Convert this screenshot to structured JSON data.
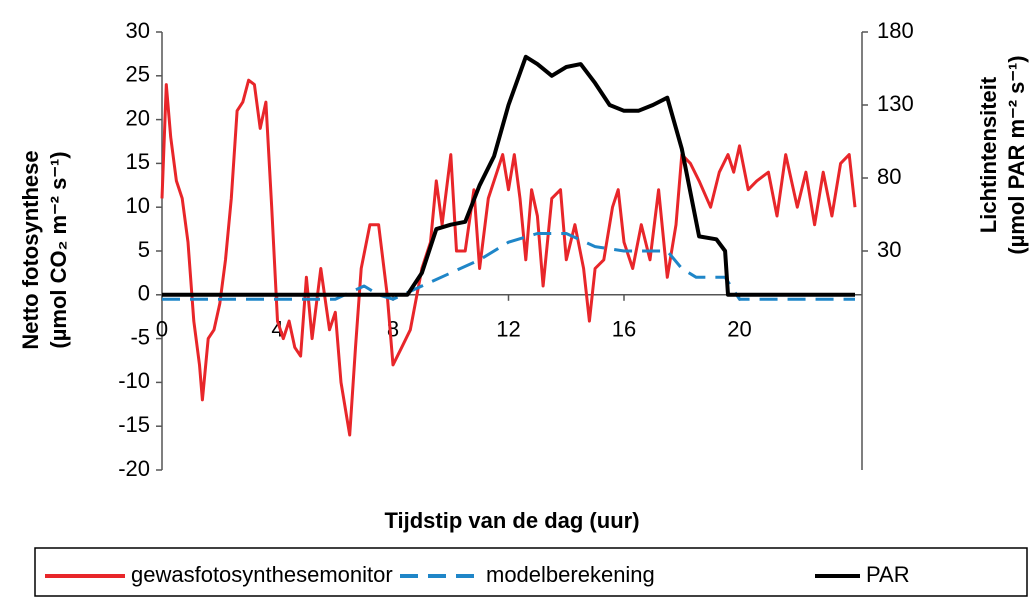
{
  "chart_data": {
    "type": "line",
    "x_label": "Tijdstip van de dag (uur)",
    "y_label": [
      "Netto fotosynthese",
      "(µmol CO₂ m⁻² s⁻¹)"
    ],
    "y2_label": [
      "Lichtintensiteit",
      "(µmol PAR m⁻² s⁻¹)"
    ],
    "xlim": [
      0,
      24
    ],
    "xticks": [
      0,
      4,
      8,
      12,
      16,
      20
    ],
    "ylim": [
      -20,
      30
    ],
    "yticks": [
      -20,
      -15,
      -10,
      -5,
      0,
      5,
      10,
      15,
      20,
      25,
      30
    ],
    "y2lim": [
      -120,
      180
    ],
    "y2ticks": [
      30,
      80,
      130,
      180
    ],
    "legend": "bottom",
    "series": [
      {
        "name": "gewasfotosynthesemonitor",
        "color": "#e8262a",
        "dash": "solid",
        "axis": "y",
        "x": [
          0,
          0.15,
          0.3,
          0.5,
          0.7,
          0.9,
          1.1,
          1.3,
          1.4,
          1.6,
          1.8,
          2,
          2.2,
          2.4,
          2.6,
          2.8,
          3,
          3.2,
          3.4,
          3.6,
          3.8,
          4,
          4.2,
          4.4,
          4.6,
          4.8,
          5,
          5.2,
          5.5,
          5.8,
          6,
          6.2,
          6.5,
          6.7,
          6.9,
          7.2,
          7.5,
          7.8,
          8,
          8.3,
          8.6,
          9,
          9.3,
          9.5,
          9.7,
          10,
          10.2,
          10.5,
          10.8,
          11,
          11.3,
          11.6,
          11.8,
          12,
          12.2,
          12.4,
          12.6,
          12.8,
          13,
          13.2,
          13.5,
          13.8,
          14,
          14.3,
          14.6,
          14.8,
          15,
          15.3,
          15.6,
          15.8,
          16,
          16.3,
          16.6,
          16.9,
          17.2,
          17.5,
          17.8,
          18,
          18.3,
          18.6,
          19,
          19.3,
          19.6,
          19.8,
          20,
          20.3,
          20.6,
          21,
          21.3,
          21.6,
          22,
          22.3,
          22.6,
          22.9,
          23.2,
          23.5,
          23.8,
          24
        ],
        "values": [
          11,
          24,
          18,
          13,
          11,
          6,
          -3,
          -8,
          -12,
          -5,
          -4,
          -1,
          4,
          11,
          21,
          22,
          24.5,
          24,
          19,
          22,
          10,
          -3,
          -5,
          -3,
          -6,
          -7,
          2,
          -5,
          3,
          -4,
          -2,
          -10,
          -16,
          -6,
          3,
          8,
          8,
          0,
          -8,
          -6,
          -4,
          3,
          6,
          13,
          8,
          16,
          5,
          5,
          12,
          3,
          11,
          14,
          16,
          12,
          16,
          11,
          4,
          12,
          9,
          1,
          11,
          12,
          4,
          8,
          3,
          -3,
          3,
          4,
          10,
          12,
          6,
          3,
          8,
          4,
          12,
          2,
          8,
          16,
          15,
          13,
          10,
          14,
          16,
          14,
          17,
          12,
          13,
          14,
          9,
          16,
          10,
          14,
          8,
          14,
          9,
          15,
          16,
          10
        ]
      },
      {
        "name": "modelberekening",
        "color": "#1f86c8",
        "dash": "dashed",
        "axis": "y",
        "x": [
          0,
          6,
          7,
          7.5,
          8,
          9,
          10,
          11,
          12,
          13,
          14,
          15,
          16,
          17,
          17.5,
          18,
          18.5,
          19.5,
          20,
          24
        ],
        "values": [
          -0.5,
          -0.5,
          1,
          0,
          -0.5,
          1,
          2.5,
          4,
          6,
          7,
          7,
          5.5,
          5,
          5,
          5,
          3,
          2,
          2,
          -0.5,
          -0.5
        ]
      },
      {
        "name": "PAR",
        "color": "#000000",
        "dash": "solid",
        "axis": "y2",
        "x": [
          0,
          8.5,
          9,
          9.5,
          10,
          10.5,
          11,
          11.5,
          12,
          12.6,
          13,
          13.5,
          14,
          14.5,
          15,
          15.5,
          16,
          16.5,
          17,
          17.5,
          18,
          18.6,
          19.2,
          19.5,
          19.6,
          24
        ],
        "values": [
          0,
          0,
          15,
          45,
          48,
          50,
          75,
          95,
          130,
          163,
          158,
          150,
          156,
          158,
          145,
          130,
          126,
          126,
          130,
          135,
          100,
          40,
          38,
          30,
          0,
          0
        ]
      }
    ]
  }
}
